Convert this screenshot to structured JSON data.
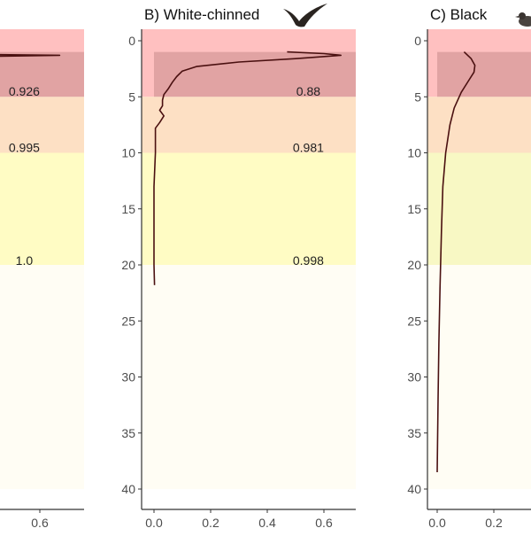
{
  "chart_data": [
    {
      "type": "line",
      "title": "",
      "xlim": [
        0,
        0.7
      ],
      "ylim": [
        42,
        -1
      ],
      "y_reversed": true,
      "xticks": [
        "0.6"
      ],
      "yticks": [],
      "bands": [
        {
          "from": 0,
          "to": 5,
          "color": "#ffc0c0",
          "label": "0.926"
        },
        {
          "from": 5,
          "to": 10,
          "color": "#fde0c4",
          "label": "0.995"
        },
        {
          "from": 10,
          "to": 20,
          "color": "#fffcc4",
          "label": "1.0"
        },
        {
          "from": 20,
          "to": 40,
          "color": "#fffdf4",
          "label": ""
        }
      ],
      "shade": {
        "y_from": 1,
        "y_to": 5
      },
      "series": [
        {
          "x": [
            0.0,
            0.3,
            0.67,
            0.3,
            0.0
          ],
          "y": [
            1.5,
            1.45,
            1.3,
            1.2,
            1.25
          ]
        }
      ]
    },
    {
      "type": "line",
      "title": "B) White-chinned",
      "icon": "flying-seabird-icon",
      "xlim": [
        -0.04,
        0.71
      ],
      "ylim": [
        42,
        -1
      ],
      "y_reversed": true,
      "xticks": [
        "0.0",
        "0.2",
        "0.4",
        "0.6"
      ],
      "yticks": [
        "0",
        "5",
        "10",
        "15",
        "20",
        "25",
        "30",
        "35",
        "40"
      ],
      "bands": [
        {
          "from": 0,
          "to": 5,
          "color": "#ffc0c0",
          "label": "0.88"
        },
        {
          "from": 5,
          "to": 10,
          "color": "#fde0c4",
          "label": "0.981"
        },
        {
          "from": 10,
          "to": 20,
          "color": "#fffcc4",
          "label": "0.998"
        },
        {
          "from": 20,
          "to": 40,
          "color": "#fffdf4",
          "label": ""
        }
      ],
      "shade": {
        "y_from": 1,
        "y_to": 5
      },
      "series": [
        {
          "x": [
            0.47,
            0.6,
            0.66,
            0.5,
            0.3,
            0.15,
            0.1,
            0.08,
            0.065,
            0.05,
            0.035,
            0.03,
            0.03,
            0.02,
            0.035,
            0.02,
            0.005,
            0.005,
            0.0,
            0.0,
            0.002
          ],
          "y": [
            1.0,
            1.15,
            1.3,
            1.6,
            1.9,
            2.3,
            2.7,
            3.2,
            3.7,
            4.3,
            4.8,
            5.3,
            5.8,
            6.2,
            6.7,
            7.3,
            7.8,
            10,
            13,
            20,
            21.8
          ]
        }
      ]
    },
    {
      "type": "line",
      "title": "C) Black",
      "icon": "duck-icon",
      "xlim": [
        -0.03,
        0.35
      ],
      "ylim": [
        42,
        -1
      ],
      "y_reversed": true,
      "xticks": [
        "0.0",
        "0.2"
      ],
      "yticks": [
        "0",
        "5",
        "10",
        "15",
        "20",
        "25",
        "30",
        "35",
        "40"
      ],
      "bands": [
        {
          "from": 0,
          "to": 5,
          "color": "#ffc0c0",
          "label": ""
        },
        {
          "from": 5,
          "to": 10,
          "color": "#fde0c4",
          "label": ""
        },
        {
          "from": 10,
          "to": 20,
          "color": "#f8f8c4",
          "label": ""
        },
        {
          "from": 20,
          "to": 40,
          "color": "#fffdf4",
          "label": ""
        }
      ],
      "shade": {
        "y_from": 1,
        "y_to": 5
      },
      "series": [
        {
          "x": [
            0.095,
            0.12,
            0.133,
            0.13,
            0.11,
            0.085,
            0.06,
            0.045,
            0.03,
            0.02,
            0.015,
            0.01,
            0.006,
            0.003,
            0.0
          ],
          "y": [
            1.0,
            1.6,
            2.2,
            2.8,
            3.6,
            4.6,
            6.0,
            7.5,
            10,
            13,
            17,
            22,
            27,
            32,
            38.5
          ]
        }
      ]
    }
  ]
}
